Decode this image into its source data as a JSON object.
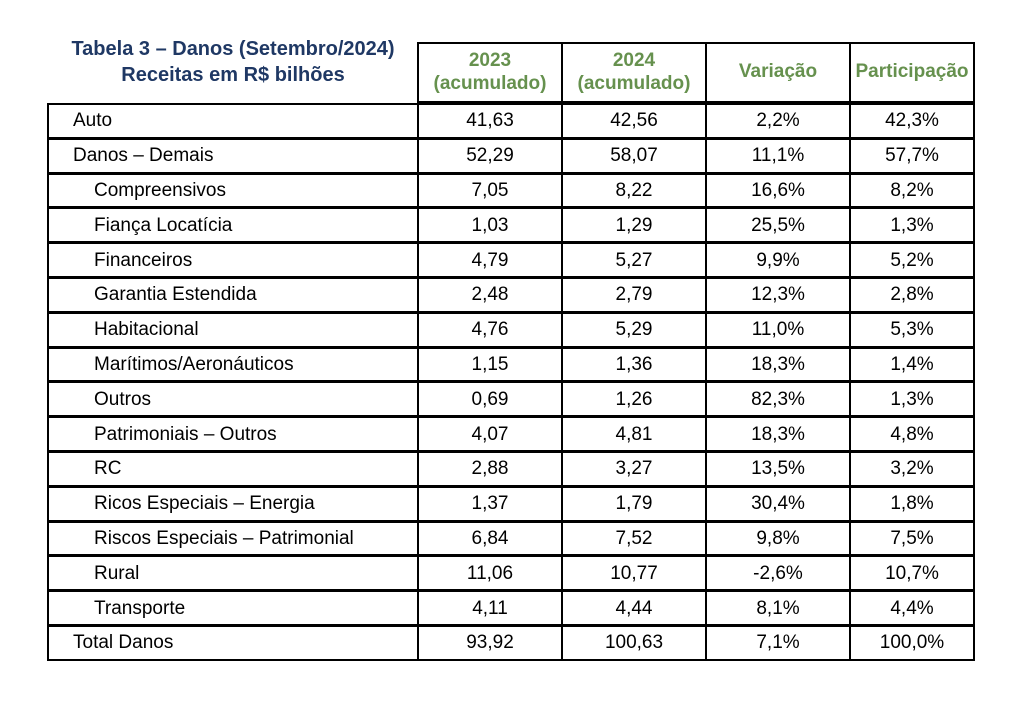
{
  "title": {
    "line1": "Tabela 3 – Danos (Setembro/2024)",
    "line2": "Receitas em R$ bilhões"
  },
  "colors": {
    "title_blue": "#1F3864",
    "header_green": "#66914E",
    "table_border": "#000000"
  },
  "table": {
    "columns": [
      {
        "id": "acumulado-2023",
        "lines": [
          "2023",
          "(acumulado)"
        ]
      },
      {
        "id": "acumulado-2024",
        "lines": [
          "2024",
          "(acumulado)"
        ]
      },
      {
        "id": "variacao",
        "lines": [
          "Variação"
        ]
      },
      {
        "id": "participacao",
        "lines": [
          "Participação"
        ]
      }
    ],
    "rows": [
      {
        "label": "Auto",
        "indent": false,
        "values": [
          "41,63",
          "42,56",
          "2,2%",
          "42,3%"
        ]
      },
      {
        "label": "Danos – Demais",
        "indent": false,
        "values": [
          "52,29",
          "58,07",
          "11,1%",
          "57,7%"
        ]
      },
      {
        "label": "Compreensivos",
        "indent": true,
        "values": [
          "7,05",
          "8,22",
          "16,6%",
          "8,2%"
        ]
      },
      {
        "label": "Fiança Locatícia",
        "indent": true,
        "values": [
          "1,03",
          "1,29",
          "25,5%",
          "1,3%"
        ]
      },
      {
        "label": "Financeiros",
        "indent": true,
        "values": [
          "4,79",
          "5,27",
          "9,9%",
          "5,2%"
        ]
      },
      {
        "label": "Garantia Estendida",
        "indent": true,
        "values": [
          "2,48",
          "2,79",
          "12,3%",
          "2,8%"
        ]
      },
      {
        "label": "Habitacional",
        "indent": true,
        "values": [
          "4,76",
          "5,29",
          "11,0%",
          "5,3%"
        ]
      },
      {
        "label": "Marítimos/Aeronáuticos",
        "indent": true,
        "values": [
          "1,15",
          "1,36",
          "18,3%",
          "1,4%"
        ]
      },
      {
        "label": "Outros",
        "indent": true,
        "values": [
          "0,69",
          "1,26",
          "82,3%",
          "1,3%"
        ]
      },
      {
        "label": "Patrimoniais – Outros",
        "indent": true,
        "values": [
          "4,07",
          "4,81",
          "18,3%",
          "4,8%"
        ]
      },
      {
        "label": "RC",
        "indent": true,
        "values": [
          "2,88",
          "3,27",
          "13,5%",
          "3,2%"
        ]
      },
      {
        "label": "Ricos Especiais – Energia",
        "indent": true,
        "values": [
          "1,37",
          "1,79",
          "30,4%",
          "1,8%"
        ]
      },
      {
        "label": "Riscos Especiais – Patrimonial",
        "indent": true,
        "values": [
          "6,84",
          "7,52",
          "9,8%",
          "7,5%"
        ]
      },
      {
        "label": "Rural",
        "indent": true,
        "values": [
          "11,06",
          "10,77",
          "-2,6%",
          "10,7%"
        ]
      },
      {
        "label": "Transporte",
        "indent": true,
        "values": [
          "4,11",
          "4,44",
          "8,1%",
          "4,4%"
        ]
      },
      {
        "label": "Total Danos",
        "indent": false,
        "values": [
          "93,92",
          "100,63",
          "7,1%",
          "100,0%"
        ]
      }
    ]
  }
}
